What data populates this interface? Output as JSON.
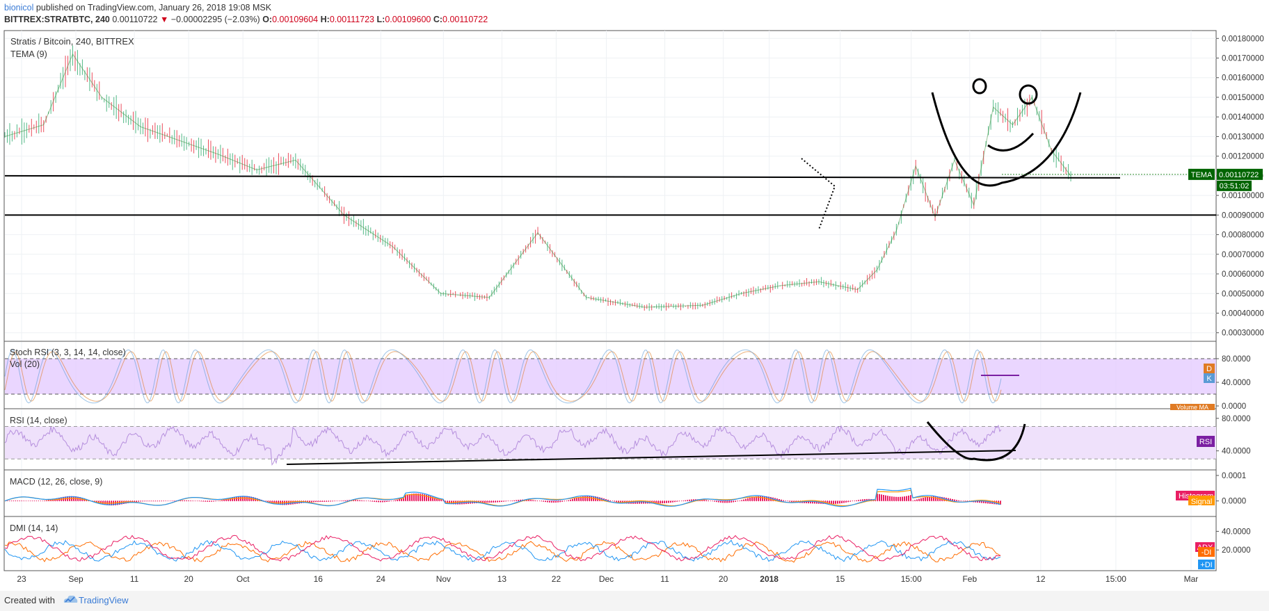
{
  "header": {
    "author": "bionicol",
    "published": " published on TradingView.com, January 26, 2018 19:08 MSK",
    "symbol_line": "BITTREX:STRATBTC, 240",
    "last": "0.00110722",
    "change": "−0.00002295 (−2.03%)",
    "o_label": "O:",
    "o_value": "0.00109604",
    "h_label": "H:",
    "h_value": "0.00111723",
    "l_label": "L:",
    "l_value": "0.00109600",
    "c_label": "C:",
    "c_value": "0.00110722"
  },
  "chart_data": [
    {
      "type": "line",
      "title": "Stratis / Bitcoin, 240, BITTREX",
      "indicator": "TEMA (9)",
      "y_ticks": [
        "0.00180000",
        "0.00170000",
        "0.00160000",
        "0.00150000",
        "0.00140000",
        "0.00130000",
        "0.00120000",
        "0.00110000",
        "0.00100000",
        "0.00090000",
        "0.00080000",
        "0.00070000",
        "0.00060000",
        "0.00050000",
        "0.00040000",
        "0.00030000"
      ],
      "ylim": [
        0.00026,
        0.00184
      ],
      "x_ticks": [
        "23",
        "Sep",
        "11",
        "20",
        "Oct",
        "16",
        "24",
        "Nov",
        "13",
        "22",
        "Dec",
        "11",
        "20",
        "2018",
        "15",
        "15:00",
        "Feb",
        "12",
        "15:00",
        "Mar"
      ],
      "series": [
        {
          "name": "TEMA",
          "x": [
            0,
            4,
            7,
            10,
            14,
            18,
            22,
            26,
            30,
            35,
            40,
            45,
            50,
            55,
            60,
            66,
            72,
            76,
            80,
            84,
            88,
            90,
            92,
            94,
            96,
            98,
            100,
            102,
            104,
            106,
            108,
            110
          ],
          "y": [
            0.0013,
            0.00136,
            0.00172,
            0.0015,
            0.00135,
            0.00128,
            0.00121,
            0.00113,
            0.00118,
            0.0009,
            0.00074,
            0.0005,
            0.00048,
            0.00081,
            0.00048,
            0.00043,
            0.00044,
            0.0005,
            0.00054,
            0.00056,
            0.00052,
            0.00062,
            0.00082,
            0.00115,
            0.00089,
            0.00118,
            0.00095,
            0.00145,
            0.00136,
            0.0015,
            0.00123,
            0.0011
          ]
        }
      ],
      "last_value_label": "0.00110722",
      "series_label": "TEMA",
      "countdown": "03:51:02",
      "horizontal_lines": [
        0.0011,
        0.0009
      ]
    },
    {
      "type": "line",
      "title": "Stoch RSI (3, 3, 14, 14, close)",
      "subtitle": "Vol (20)",
      "y_ticks": [
        "80.0000",
        "40.0000",
        "0.0000"
      ],
      "ylim": [
        0,
        100
      ],
      "band": [
        20,
        80
      ],
      "badge_d": "D",
      "badge_k": "K",
      "volume_ma_label": "Volume MA"
    },
    {
      "type": "line",
      "title": "RSI (14, close)",
      "y_ticks": [
        "80.0000",
        "40.0000"
      ],
      "ylim": [
        20,
        85
      ],
      "band": [
        30,
        70
      ],
      "series_label": "RSI",
      "trendline": {
        "from": [
          1.5,
          23
        ],
        "to": [
          114,
          30
        ]
      }
    },
    {
      "type": "line",
      "title": "MACD (12, 26, close, 9)",
      "y_ticks": [
        "0.0001",
        "0.0000"
      ],
      "ylim": [
        -5e-05,
        0.0001
      ],
      "legend": [
        "Histogram",
        "Signal"
      ]
    },
    {
      "type": "line",
      "title": "DMI (14, 14)",
      "y_ticks": [
        "40.0000",
        "20.0000"
      ],
      "ylim": [
        0,
        50
      ],
      "legend": [
        "ADX",
        "-DI",
        "+DI"
      ]
    }
  ],
  "footer": {
    "created_with": "Created with",
    "brand": "TradingView"
  },
  "colors": {
    "up": "#53b987",
    "down": "#eb4d5c",
    "tema": "#2d8a2d",
    "band": "#e5ccff",
    "stoch_k": "#5b9bd5",
    "stoch_d": "#e07b24",
    "rsi": "#9c6bd0",
    "rsi_badge": "#7b1fa2",
    "macd": "#2196f3",
    "signal": "#ff9800",
    "hist": "#e91e63",
    "adx": "#e91e63",
    "minus_di": "#ff6d00",
    "plus_di": "#2196f3"
  }
}
